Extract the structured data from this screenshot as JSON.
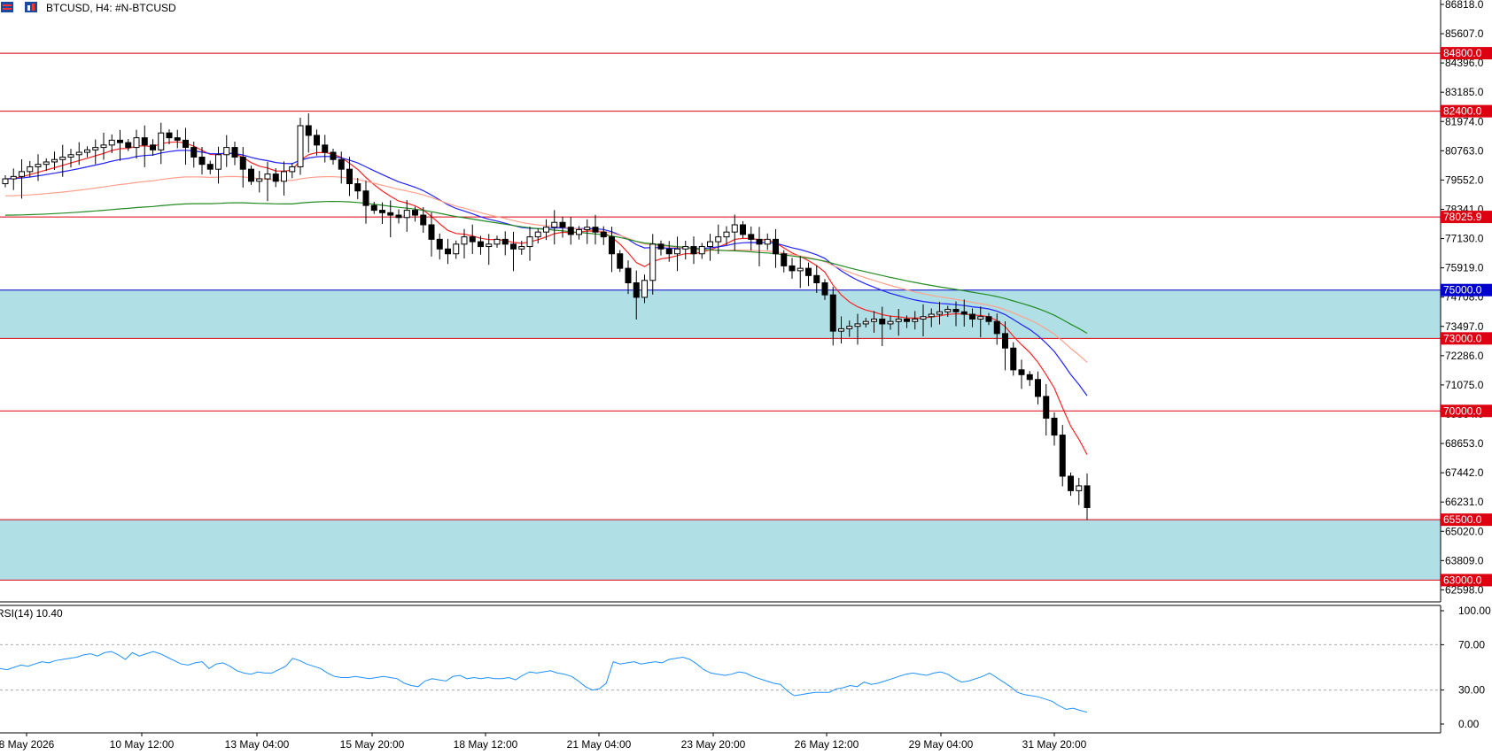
{
  "header": {
    "title": "BTCUSD, H4:  #N-BTCUSD"
  },
  "indicator": {
    "label": "RSI(14) 10.40",
    "levels": [
      70,
      30
    ],
    "axis_ticks": [
      "100.00",
      "70.00",
      "30.00",
      "0.00"
    ]
  },
  "price_axis": {
    "ticks": [
      "86818.0",
      "85607.0",
      "84396.0",
      "83185.0",
      "81974.0",
      "80763.0",
      "79552.0",
      "78341.0",
      "77130.0",
      "75919.0",
      "74708.0",
      "73497.0",
      "72286.0",
      "71075.0",
      "69864.0",
      "68653.0",
      "67442.0",
      "66231.0",
      "65020.0",
      "63809.0",
      "62598.0"
    ]
  },
  "time_axis": {
    "ticks": [
      "8 May 2026",
      "10 May 12:00",
      "13 May 04:00",
      "15 May 20:00",
      "18 May 12:00",
      "21 May 04:00",
      "23 May 20:00",
      "26 May 12:00",
      "29 May 04:00",
      "31 May 20:00"
    ]
  },
  "levels": [
    {
      "price": 84800,
      "label": "84800.0",
      "color": "#dd0011"
    },
    {
      "price": 82400,
      "label": "82400.0",
      "color": "#dd0011"
    },
    {
      "price": 78025.9,
      "label": "78025.9",
      "color": "#dd0011"
    },
    {
      "price": 75000,
      "label": "75000.0",
      "color": "#0000cc"
    },
    {
      "price": 73000,
      "label": "73000.0",
      "color": "#dd0011"
    },
    {
      "price": 70000,
      "label": "70000.0",
      "color": "#dd0011"
    },
    {
      "price": 65500,
      "label": "65500.0",
      "color": "#dd0011"
    },
    {
      "price": 63000,
      "label": "63000.0",
      "color": "#dd0011"
    }
  ],
  "zones": [
    {
      "from": 73000,
      "to": 75000,
      "color": "#b0e0e6"
    },
    {
      "from": 63000,
      "to": 65500,
      "color": "#b0e0e6"
    }
  ],
  "colors": {
    "ma_fast": "#ff2222",
    "ma_mid": "#2222ff",
    "ma_slow": "#ffa08c",
    "ma_long": "#228b22",
    "rsi": "#1e90ff",
    "candle_bull": "#ffffff",
    "candle_bear": "#000000"
  },
  "chart_data": {
    "type": "candlestick",
    "symbol": "BTCUSD",
    "timeframe": "H4",
    "y_range": [
      62100,
      87000
    ],
    "candles_close_path": [
      [
        0,
        79600
      ],
      [
        1,
        79700
      ],
      [
        2,
        79900
      ],
      [
        3,
        80100
      ],
      [
        4,
        80200
      ],
      [
        5,
        80300
      ],
      [
        6,
        80400
      ],
      [
        7,
        80500
      ],
      [
        8,
        80600
      ],
      [
        9,
        80700
      ],
      [
        10,
        80800
      ],
      [
        11,
        80900
      ],
      [
        12,
        81000
      ],
      [
        13,
        81200
      ],
      [
        14,
        81100
      ],
      [
        15,
        80900
      ],
      [
        16,
        81300
      ],
      [
        17,
        81000
      ],
      [
        18,
        80800
      ],
      [
        19,
        81500
      ],
      [
        20,
        81300
      ],
      [
        21,
        81200
      ],
      [
        22,
        80900
      ],
      [
        23,
        80500
      ],
      [
        24,
        80200
      ],
      [
        25,
        80000
      ],
      [
        26,
        80600
      ],
      [
        27,
        80900
      ],
      [
        28,
        80500
      ],
      [
        29,
        80000
      ],
      [
        30,
        79500
      ],
      [
        31,
        79600
      ],
      [
        32,
        79800
      ],
      [
        33,
        79500
      ],
      [
        34,
        79900
      ],
      [
        35,
        80100
      ],
      [
        36,
        81800
      ],
      [
        37,
        81400
      ],
      [
        38,
        81000
      ],
      [
        39,
        80700
      ],
      [
        40,
        80400
      ],
      [
        41,
        80000
      ],
      [
        42,
        79400
      ],
      [
        43,
        79100
      ],
      [
        44,
        78500
      ],
      [
        45,
        78300
      ],
      [
        46,
        78200
      ],
      [
        47,
        78100
      ],
      [
        48,
        78000
      ],
      [
        49,
        78300
      ],
      [
        50,
        78100
      ],
      [
        51,
        77700
      ],
      [
        52,
        77100
      ],
      [
        53,
        76700
      ],
      [
        54,
        76500
      ],
      [
        55,
        76900
      ],
      [
        56,
        77200
      ],
      [
        57,
        77000
      ],
      [
        58,
        76800
      ],
      [
        59,
        76900
      ],
      [
        60,
        77100
      ],
      [
        61,
        76900
      ],
      [
        62,
        76700
      ],
      [
        63,
        76800
      ],
      [
        64,
        77200
      ],
      [
        65,
        77400
      ],
      [
        66,
        77600
      ],
      [
        67,
        77800
      ],
      [
        68,
        77600
      ],
      [
        69,
        77300
      ],
      [
        70,
        77500
      ],
      [
        71,
        77600
      ],
      [
        72,
        77400
      ],
      [
        73,
        77200
      ],
      [
        74,
        76500
      ],
      [
        75,
        75900
      ],
      [
        76,
        75300
      ],
      [
        77,
        74700
      ],
      [
        78,
        75400
      ],
      [
        79,
        76900
      ],
      [
        80,
        76700
      ],
      [
        81,
        76500
      ],
      [
        82,
        76700
      ],
      [
        83,
        76800
      ],
      [
        84,
        76500
      ],
      [
        85,
        76800
      ],
      [
        86,
        77000
      ],
      [
        87,
        77200
      ],
      [
        88,
        77400
      ],
      [
        89,
        77700
      ],
      [
        90,
        77300
      ],
      [
        91,
        77100
      ],
      [
        92,
        76900
      ],
      [
        93,
        77100
      ],
      [
        94,
        76500
      ],
      [
        95,
        76000
      ],
      [
        96,
        75800
      ],
      [
        97,
        75900
      ],
      [
        98,
        75600
      ],
      [
        99,
        75300
      ],
      [
        100,
        74800
      ],
      [
        101,
        73300
      ],
      [
        102,
        73400
      ],
      [
        103,
        73500
      ],
      [
        104,
        73600
      ],
      [
        105,
        73700
      ],
      [
        106,
        73800
      ],
      [
        107,
        73600
      ],
      [
        108,
        73700
      ],
      [
        109,
        73800
      ],
      [
        110,
        73700
      ],
      [
        111,
        73800
      ],
      [
        112,
        73900
      ],
      [
        113,
        74000
      ],
      [
        114,
        74100
      ],
      [
        115,
        74200
      ],
      [
        116,
        74100
      ],
      [
        117,
        74000
      ],
      [
        118,
        73800
      ],
      [
        119,
        73900
      ],
      [
        120,
        73700
      ],
      [
        121,
        73200
      ],
      [
        122,
        72600
      ],
      [
        123,
        71700
      ],
      [
        124,
        71500
      ],
      [
        125,
        71300
      ],
      [
        126,
        70600
      ],
      [
        127,
        69700
      ],
      [
        128,
        69000
      ],
      [
        129,
        67300
      ],
      [
        130,
        66700
      ],
      [
        131,
        66900
      ],
      [
        132,
        66000
      ]
    ],
    "rsi_values": [
      49,
      48,
      50,
      52,
      51,
      53,
      55,
      54,
      56,
      57,
      58,
      59,
      61,
      62,
      60,
      63,
      64,
      61,
      57,
      63,
      60,
      62,
      64,
      62,
      59,
      56,
      53,
      52,
      54,
      55,
      49,
      53,
      54,
      51,
      47,
      45,
      44,
      46,
      45,
      45,
      48,
      51,
      58,
      56,
      53,
      51,
      49,
      45,
      42,
      41,
      41,
      42,
      41,
      40,
      41,
      42,
      41,
      40,
      36,
      34,
      33,
      38,
      40,
      39,
      38,
      42,
      43,
      40,
      41,
      40,
      41,
      40,
      40,
      41,
      39,
      43,
      46,
      45,
      46,
      47,
      45,
      44,
      42,
      38,
      33,
      30,
      31,
      36,
      55,
      53,
      54,
      55,
      53,
      54,
      55,
      54,
      57,
      58,
      59,
      57,
      53,
      48,
      45,
      44,
      43,
      44,
      46,
      45,
      42,
      40,
      38,
      36,
      35,
      29,
      25,
      26,
      27,
      28,
      28,
      28,
      31,
      32,
      34,
      33,
      37,
      35,
      36,
      38,
      40,
      42,
      44,
      45,
      44,
      43,
      45,
      46,
      44,
      40,
      37,
      38,
      40,
      42,
      45,
      41,
      37,
      33,
      28,
      26,
      25,
      24,
      22,
      20,
      16,
      13,
      14,
      12,
      10.4
    ]
  }
}
